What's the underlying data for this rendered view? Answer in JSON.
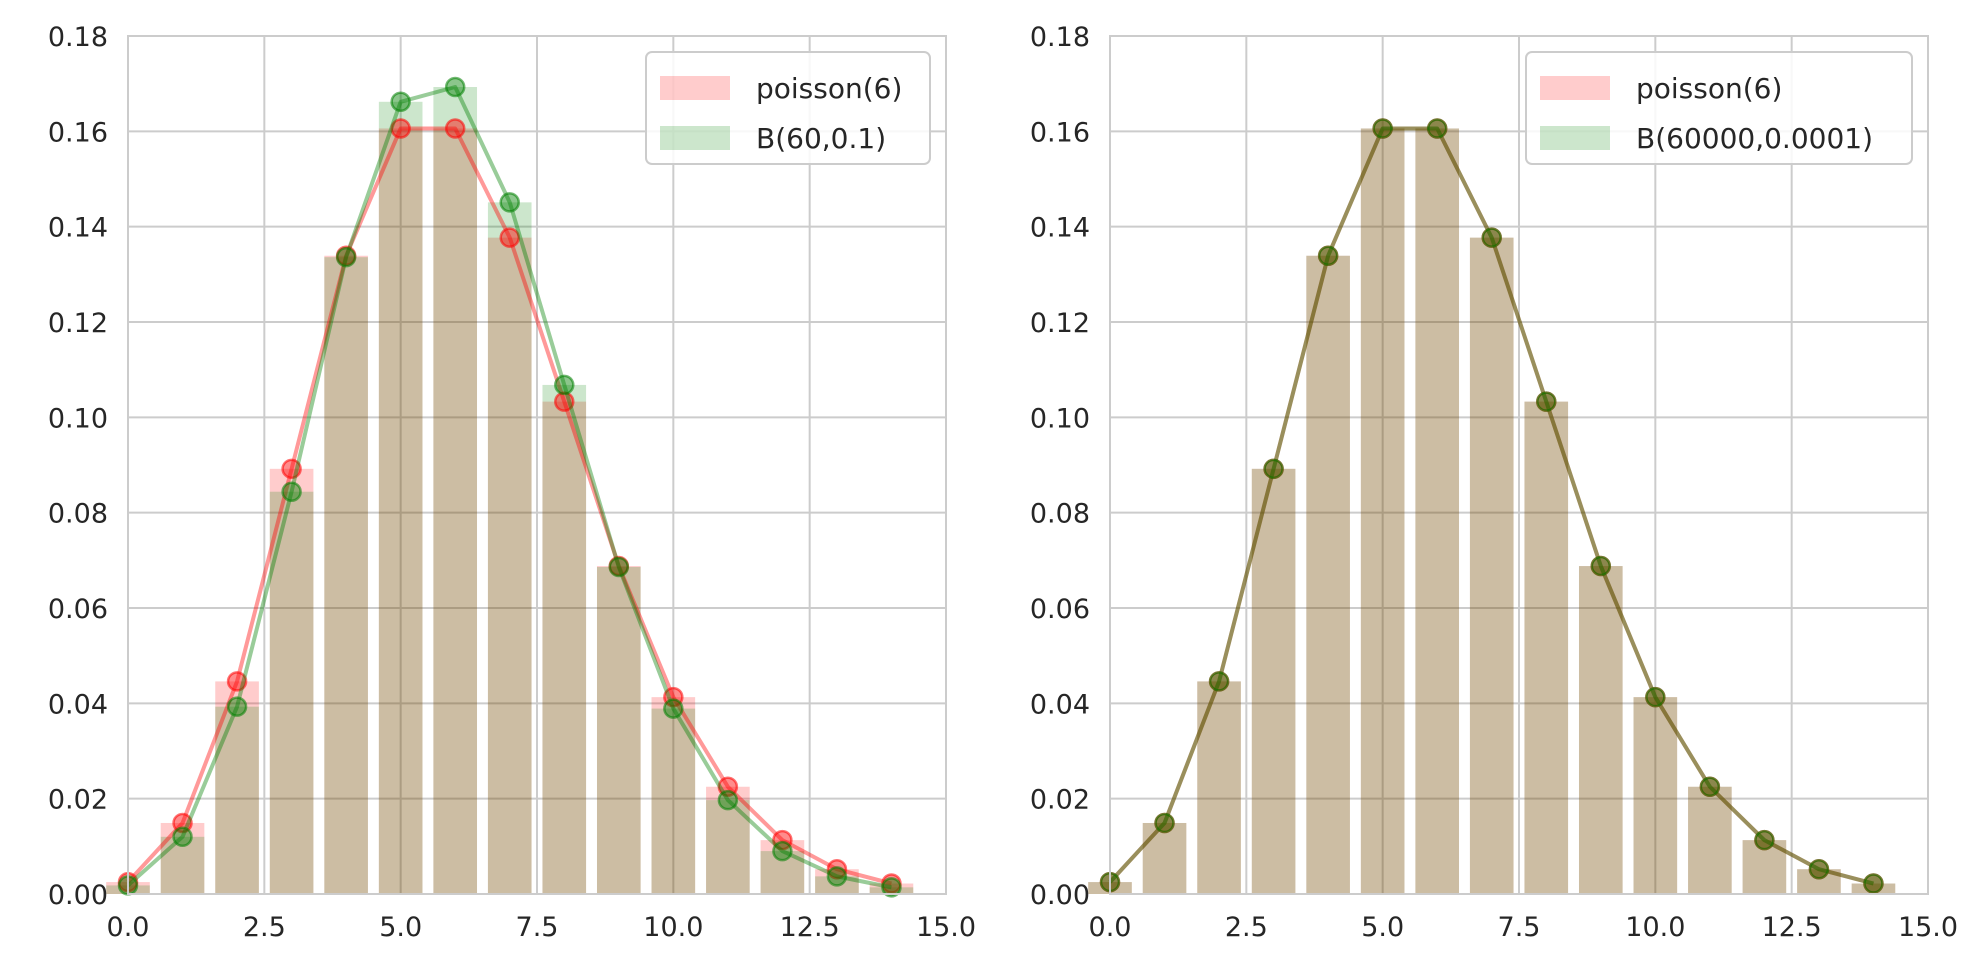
{
  "chart_data": [
    {
      "type": "bar",
      "xlim": [
        0,
        15
      ],
      "ylim": [
        0,
        0.18
      ],
      "xticks": [
        "0.0",
        "2.5",
        "5.0",
        "7.5",
        "10.0",
        "12.5",
        "15.0"
      ],
      "yticks": [
        "0.00",
        "0.02",
        "0.04",
        "0.06",
        "0.08",
        "0.10",
        "0.12",
        "0.14",
        "0.16",
        "0.18"
      ],
      "grid": true,
      "legend_position": "top-right",
      "x": [
        0,
        1,
        2,
        3,
        4,
        5,
        6,
        7,
        8,
        9,
        10,
        11,
        12,
        13,
        14
      ],
      "series": [
        {
          "name": "poisson(6)",
          "color": "#ff0000",
          "values": [
            0.0025,
            0.0149,
            0.0446,
            0.0892,
            0.1339,
            0.1606,
            0.1606,
            0.1377,
            0.1033,
            0.0688,
            0.0413,
            0.0225,
            0.0113,
            0.0052,
            0.0022
          ]
        },
        {
          "name": "B(60,0.1)",
          "color": "#008000",
          "values": [
            0.0018,
            0.012,
            0.0393,
            0.0844,
            0.1336,
            0.1662,
            0.1693,
            0.1451,
            0.1068,
            0.0686,
            0.0389,
            0.0197,
            0.009,
            0.0037,
            0.0014
          ]
        }
      ]
    },
    {
      "type": "bar",
      "xlim": [
        0,
        15
      ],
      "ylim": [
        0,
        0.18
      ],
      "xticks": [
        "0.0",
        "2.5",
        "5.0",
        "7.5",
        "10.0",
        "12.5",
        "15.0"
      ],
      "yticks": [
        "0.00",
        "0.02",
        "0.04",
        "0.06",
        "0.08",
        "0.10",
        "0.12",
        "0.14",
        "0.16",
        "0.18"
      ],
      "grid": true,
      "legend_position": "top-right",
      "x": [
        0,
        1,
        2,
        3,
        4,
        5,
        6,
        7,
        8,
        9,
        10,
        11,
        12,
        13,
        14
      ],
      "series": [
        {
          "name": "poisson(6)",
          "color": "#ff0000",
          "values": [
            0.0025,
            0.0149,
            0.0446,
            0.0892,
            0.1339,
            0.1606,
            0.1606,
            0.1377,
            0.1033,
            0.0688,
            0.0413,
            0.0225,
            0.0113,
            0.0052,
            0.0022
          ]
        },
        {
          "name": "B(60000,0.0001)",
          "color": "#008000",
          "values": [
            0.0025,
            0.0149,
            0.0446,
            0.0892,
            0.1339,
            0.1606,
            0.1606,
            0.1377,
            0.1033,
            0.0688,
            0.0413,
            0.0225,
            0.0113,
            0.0052,
            0.0022
          ]
        }
      ]
    }
  ]
}
